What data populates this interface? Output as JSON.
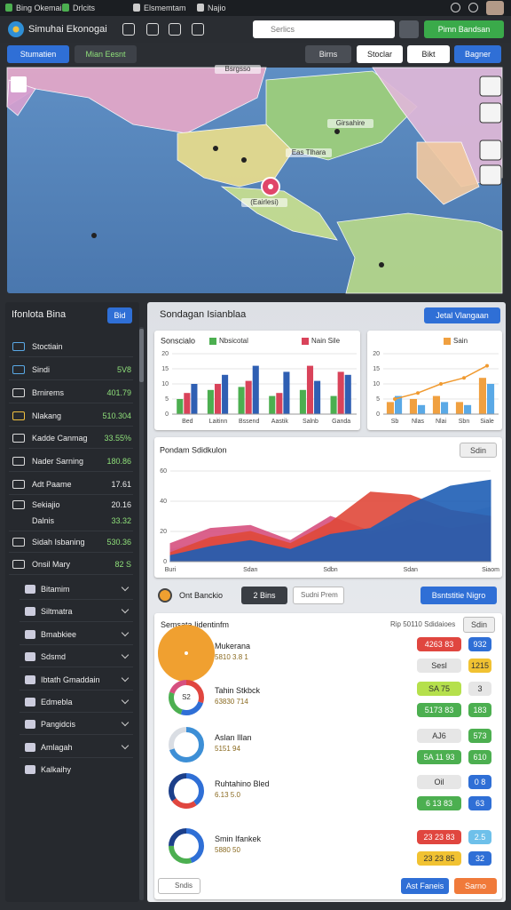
{
  "topbar": {
    "items": [
      "Bing Okemain",
      "Drlcits",
      "Elsmemtam",
      "Najio"
    ]
  },
  "header": {
    "title": "Simuhai Ekonogai",
    "search": "Serlics",
    "button": "Pimn Bandsan"
  },
  "toolbar": {
    "left": [
      "Stumatien",
      "Mian Eesnt"
    ],
    "right": [
      "Birns",
      "Stoclar",
      "Bikt",
      "Bagner"
    ]
  },
  "map": {
    "labels": [
      "Bsrgsso",
      "Girsahire",
      "Eas Tlhara",
      "(Eairlesi)"
    ]
  },
  "sidebar": {
    "title": "Ifonlota Bina",
    "button": "Bid",
    "items": [
      {
        "name": "Stoctiain"
      },
      {
        "name": "Sindi",
        "value": "5V8"
      },
      {
        "name": "Brnirems",
        "value": "401.79"
      },
      {
        "name": "Nlakang",
        "value": "510.304"
      },
      {
        "name": "Kadde Canmag",
        "value": "33.55%"
      },
      {
        "name": "Nader Sarning",
        "value": "180.86"
      },
      {
        "name": "Adt Paame",
        "value": "17.61"
      },
      {
        "name": "Sekiajio",
        "value": "20.16"
      },
      {
        "name": "Dalnis",
        "value": "33.32"
      },
      {
        "name": "Sidah Isbaning",
        "value": "530.36"
      },
      {
        "name": "Onsil Mary",
        "value": "82 S"
      }
    ],
    "groups": [
      "Bitamim",
      "Siltmatra",
      "Bmabkiee",
      "Sdsmd",
      "Ibtath Gmaddain",
      "Edmebla",
      "Pangidcis",
      "Amlagah",
      "Kalkaihy"
    ]
  },
  "panel": {
    "title": "Sondagan Isianblaa",
    "button": "Jetal Vlangaan",
    "area_button": "Sdin"
  },
  "chart_data": [
    {
      "type": "bar",
      "title": "Sonscialo",
      "categories": [
        "Bed",
        "Laitinn",
        "Bssend",
        "Aastik",
        "Salnb",
        "Ganda"
      ],
      "series": [
        {
          "name": "Nbsicotal",
          "color": "#4caf50",
          "values": [
            5,
            8,
            9,
            6,
            8,
            6
          ]
        },
        {
          "name": "Nain Sile",
          "color": "#d9435a",
          "values": [
            7,
            10,
            11,
            7,
            16,
            14
          ]
        },
        {
          "color": "#2f5fb3",
          "values": [
            10,
            13,
            16,
            14,
            11,
            13
          ]
        }
      ],
      "ylim": [
        0,
        20
      ],
      "yticks": [
        0,
        5,
        10,
        15,
        20
      ],
      "grid": true
    },
    {
      "type": "bar",
      "categories": [
        "Sb",
        "Nlas",
        "Nlai",
        "Sbn",
        "Siale"
      ],
      "series": [
        {
          "name": "Sain",
          "color": "#f0a040",
          "values": [
            4,
            5,
            6,
            4,
            12
          ]
        },
        {
          "color": "#5aa9e6",
          "values": [
            6,
            3,
            4,
            3,
            10
          ]
        },
        {
          "color": "#f09a30",
          "mark": "line",
          "values": [
            5,
            7,
            10,
            12,
            16
          ]
        }
      ],
      "ylim": [
        0,
        20
      ],
      "yticks": [
        0,
        5,
        10,
        15,
        20
      ],
      "grid": true
    },
    {
      "type": "area",
      "title": "Pondam Sdidkulon",
      "categories": [
        "Buri",
        null,
        "Sdan",
        null,
        "Sdbn",
        null,
        "Sdan",
        null,
        "Siaom"
      ],
      "series": [
        {
          "color": "#c9d6ee",
          "values": [
            8,
            14,
            18,
            10,
            20,
            18,
            24,
            30,
            36
          ]
        },
        {
          "color": "#d6507f",
          "values": [
            12,
            22,
            24,
            14,
            30,
            20,
            28,
            22,
            26
          ]
        },
        {
          "color": "#e0493a",
          "values": [
            6,
            16,
            20,
            12,
            26,
            46,
            44,
            34,
            30
          ]
        },
        {
          "color": "#1f5fb5",
          "values": [
            4,
            10,
            14,
            8,
            18,
            22,
            38,
            50,
            54
          ]
        }
      ],
      "ylim": [
        0,
        60
      ],
      "yticks": [
        0,
        20,
        40,
        60
      ],
      "grid": true
    }
  ],
  "controls": {
    "label": "Ont Banckio",
    "select": "2 Bins",
    "input": "Sudni Prem",
    "button": "Bsntstitie Nigro"
  },
  "list": {
    "title": "Semsata Iidentinfm",
    "info": "Rip 50110 Sdidaioes",
    "button": "Sdin",
    "rows": [
      {
        "name": "Mukerana",
        "sub": "5810 3.8 1",
        "segments": [
          {
            "value": 100,
            "color": "#f0a030"
          }
        ],
        "pills": [
          {
            "text": "4263 83",
            "color": "#e0463f"
          },
          {
            "text": "932",
            "color": "#2f6fd6"
          },
          {
            "text": "Sesl",
            "color": "#e6e6e6"
          },
          {
            "text": "1215",
            "color": "#f1c232"
          }
        ]
      },
      {
        "name": "Tahin Stkbck",
        "sub": "63830 714",
        "center": "S2",
        "segments": [
          {
            "value": 30,
            "color": "#e0463f"
          },
          {
            "value": 25,
            "color": "#2f6fd6"
          },
          {
            "value": 25,
            "color": "#4caf50"
          },
          {
            "value": 20,
            "color": "#d6507f"
          }
        ],
        "pills": [
          {
            "text": "SA 75",
            "color": "#b5e04c"
          },
          {
            "text": "3",
            "color": "#e6e6e6"
          },
          {
            "text": "5173 83",
            "color": "#4caf50"
          },
          {
            "text": "183",
            "color": "#4caf50"
          }
        ]
      },
      {
        "name": "Aslan Illan",
        "sub": "5151 94",
        "segments": [
          {
            "value": 70,
            "color": "#3d8fd6"
          },
          {
            "value": 30,
            "color": "#d9dde3"
          }
        ],
        "pills": [
          {
            "text": "AJ6",
            "color": "#e6e6e6"
          },
          {
            "text": "573",
            "color": "#4caf50"
          },
          {
            "text": "5A 11 93",
            "color": "#4caf50"
          },
          {
            "text": "610",
            "color": "#4caf50"
          }
        ]
      },
      {
        "name": "Ruhtahino Bled",
        "sub": "6.13 5.0",
        "segments": [
          {
            "value": 40,
            "color": "#2f6fd6"
          },
          {
            "value": 25,
            "color": "#e0463f"
          },
          {
            "value": 35,
            "color": "#1c3f8a"
          }
        ],
        "pills": [
          {
            "text": "Oil",
            "color": "#e6e6e6"
          },
          {
            "text": "0 8",
            "color": "#2f6fd6"
          },
          {
            "text": "6 13 83",
            "color": "#4caf50"
          },
          {
            "text": "63",
            "color": "#2f6fd6"
          }
        ]
      },
      {
        "name": "Smin Ifankek",
        "sub": "5880 50",
        "segments": [
          {
            "value": 45,
            "color": "#2f6fd6"
          },
          {
            "value": 30,
            "color": "#4caf50"
          },
          {
            "value": 25,
            "color": "#1c3f8a"
          }
        ],
        "pills": [
          {
            "text": "23 23 83",
            "color": "#e0463f"
          },
          {
            "text": "2.5",
            "color": "#6ec0ea"
          },
          {
            "text": "23 23 85",
            "color": "#f1c232"
          },
          {
            "text": "32",
            "color": "#2f6fd6"
          }
        ]
      }
    ]
  },
  "footer": {
    "input": "Sndis",
    "buttons": [
      "Ast Faneis",
      "Sarno"
    ]
  }
}
